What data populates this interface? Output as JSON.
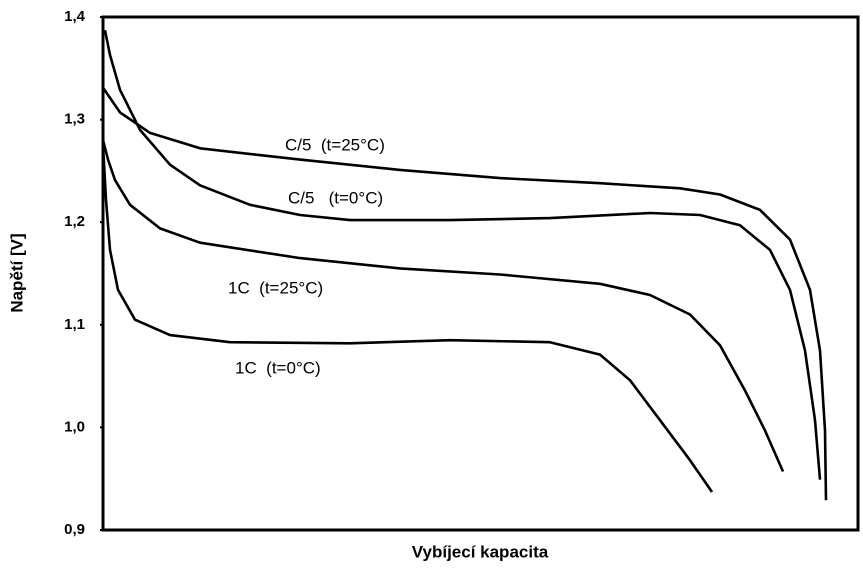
{
  "chart_data": {
    "type": "line",
    "xlabel": "Vybíjecí kapacita",
    "ylabel": "Napětí [V]",
    "xlim": [
      0,
      755
    ],
    "ylim": [
      0.9,
      1.4
    ],
    "yticks": [
      {
        "value": 0.9,
        "label": "0,9"
      },
      {
        "value": 1.0,
        "label": "1,0"
      },
      {
        "value": 1.1,
        "label": "1,1"
      },
      {
        "value": 1.2,
        "label": "1,2"
      },
      {
        "value": 1.3,
        "label": "1,3"
      },
      {
        "value": 1.4,
        "label": "1,4"
      }
    ],
    "series": [
      {
        "name": "C/5  (t=25°C)",
        "color": "#000000",
        "x": [
          0,
          17,
          47,
          97,
          197,
          297,
          397,
          497,
          577,
          617,
          657,
          687,
          707,
          717,
          722,
          723
        ],
        "values": [
          1.331,
          1.307,
          1.287,
          1.272,
          1.261,
          1.251,
          1.243,
          1.238,
          1.233,
          1.227,
          1.212,
          1.183,
          1.134,
          1.075,
          0.997,
          0.929
        ]
      },
      {
        "name": "C/5   (t=0°C)",
        "color": "#000000",
        "x": [
          2,
          7,
          17,
          37,
          67,
          97,
          147,
          197,
          247,
          347,
          447,
          547,
          597,
          637,
          667,
          687,
          702,
          712,
          717
        ],
        "values": [
          1.387,
          1.363,
          1.329,
          1.29,
          1.256,
          1.236,
          1.217,
          1.207,
          1.202,
          1.202,
          1.204,
          1.209,
          1.207,
          1.197,
          1.173,
          1.134,
          1.075,
          1.007,
          0.949
        ]
      },
      {
        "name": "1C  (t=25°C)",
        "color": "#000000",
        "x": [
          0,
          5,
          12,
          27,
          57,
          97,
          197,
          297,
          397,
          497,
          547,
          587,
          617,
          642,
          662,
          680
        ],
        "values": [
          1.28,
          1.261,
          1.241,
          1.217,
          1.194,
          1.18,
          1.165,
          1.155,
          1.149,
          1.14,
          1.129,
          1.11,
          1.08,
          1.036,
          0.997,
          0.957
        ]
      },
      {
        "name": "1C  (t=0°C)",
        "color": "#000000",
        "x": [
          0,
          3,
          7,
          15,
          32,
          67,
          127,
          247,
          347,
          447,
          497,
          527,
          557,
          587,
          609
        ],
        "values": [
          1.275,
          1.222,
          1.173,
          1.134,
          1.105,
          1.09,
          1.083,
          1.082,
          1.085,
          1.083,
          1.071,
          1.046,
          1.007,
          0.968,
          0.937
        ]
      }
    ]
  }
}
